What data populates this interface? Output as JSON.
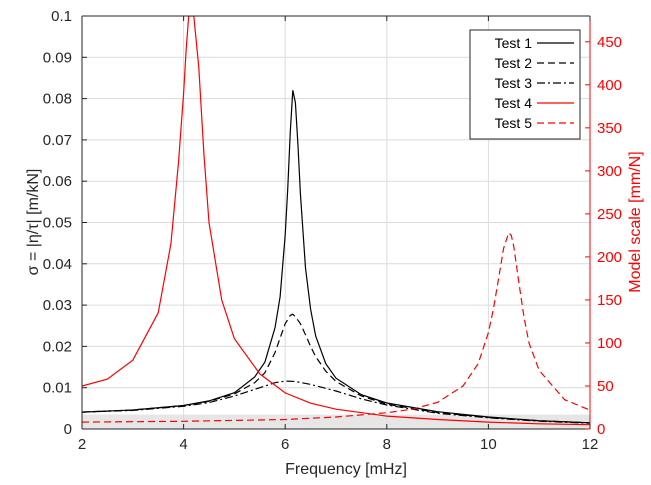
{
  "chart_data": {
    "type": "line",
    "xlabel": "Frequency [mHz]",
    "ylabel_left": "σ = |η/τ| [m/kN]",
    "ylabel_right": "Model scale [mm/N]",
    "xlim": [
      2,
      12
    ],
    "ylim_left": [
      0,
      0.1
    ],
    "ylim_right": [
      0,
      480
    ],
    "x_ticks": [
      "2",
      "4",
      "6",
      "8",
      "10",
      "12"
    ],
    "y_ticks_left": [
      "0",
      "0.01",
      "0.02",
      "0.03",
      "0.04",
      "0.05",
      "0.06",
      "0.07",
      "0.08",
      "0.09",
      "0.1"
    ],
    "y_ticks_right": [
      "0",
      "50",
      "100",
      "150",
      "200",
      "250",
      "300",
      "350",
      "400",
      "450"
    ],
    "grid": true,
    "legend_position": "top-right",
    "shaded_band": {
      "y_from": 0,
      "y_to": 0.0035,
      "axis": "left"
    },
    "colors": {
      "black": "#000000",
      "red": "#ff0000",
      "grid": "#dcdcdc",
      "band": "#e6e6e6"
    },
    "series": [
      {
        "name": "Test 1",
        "axis": "left",
        "color": "#000000",
        "dash": "solid",
        "x": [
          2,
          3,
          4,
          4.5,
          5,
          5.4,
          5.6,
          5.8,
          5.9,
          6.0,
          6.05,
          6.1,
          6.15,
          6.2,
          6.25,
          6.3,
          6.4,
          6.5,
          6.6,
          6.8,
          7.0,
          7.5,
          8.0,
          9.0,
          10.0,
          11.0,
          12.0
        ],
        "y": [
          0.0041,
          0.0046,
          0.0057,
          0.0068,
          0.0088,
          0.0126,
          0.0162,
          0.0245,
          0.032,
          0.047,
          0.058,
          0.072,
          0.082,
          0.079,
          0.069,
          0.057,
          0.039,
          0.029,
          0.0225,
          0.0158,
          0.0123,
          0.0083,
          0.0063,
          0.0042,
          0.0029,
          0.002,
          0.0015
        ]
      },
      {
        "name": "Test 2",
        "axis": "left",
        "color": "#000000",
        "dash": "dashed",
        "x": [
          2,
          3,
          4,
          4.5,
          5,
          5.4,
          5.6,
          5.8,
          5.9,
          6.0,
          6.1,
          6.15,
          6.2,
          6.3,
          6.4,
          6.5,
          6.6,
          6.8,
          7.0,
          7.5,
          8.0,
          9.0,
          10.0,
          11.0,
          12.0
        ],
        "y": [
          0.0041,
          0.0046,
          0.0057,
          0.0067,
          0.0085,
          0.0112,
          0.0136,
          0.0185,
          0.022,
          0.0255,
          0.0275,
          0.0278,
          0.0272,
          0.0255,
          0.0228,
          0.02,
          0.0175,
          0.014,
          0.0115,
          0.008,
          0.006,
          0.004,
          0.0028,
          0.002,
          0.0015
        ]
      },
      {
        "name": "Test 3",
        "axis": "left",
        "color": "#000000",
        "dash": "dashdot",
        "x": [
          2,
          3,
          4,
          4.5,
          5,
          5.5,
          5.8,
          6.0,
          6.2,
          6.5,
          7.0,
          7.5,
          8.0,
          9.0,
          10.0,
          11.0,
          12.0
        ],
        "y": [
          0.0041,
          0.0045,
          0.0055,
          0.0064,
          0.008,
          0.01,
          0.0112,
          0.0116,
          0.0115,
          0.0108,
          0.0092,
          0.0073,
          0.0058,
          0.0038,
          0.0027,
          0.0019,
          0.0014
        ]
      },
      {
        "name": "Test 4",
        "axis": "right",
        "color": "#ff0000",
        "dash": "solid",
        "x": [
          2,
          2.5,
          3,
          3.5,
          3.75,
          3.9,
          4.0,
          4.05,
          4.1,
          4.2,
          4.3,
          4.4,
          4.5,
          4.75,
          5.0,
          5.5,
          6.0,
          6.5,
          7.0,
          8.0,
          9.0,
          10.0,
          11.0,
          12.0
        ],
        "y": [
          50,
          58,
          80,
          135,
          215,
          310,
          390,
          440,
          480,
          480,
          420,
          320,
          240,
          150,
          105,
          64,
          42,
          30,
          23,
          15,
          11,
          8,
          6,
          5
        ]
      },
      {
        "name": "Test 5",
        "axis": "right",
        "color": "#ff0000",
        "dash": "dashed",
        "x": [
          2,
          4,
          6,
          7,
          8,
          8.5,
          9,
          9.5,
          9.8,
          10.0,
          10.1,
          10.2,
          10.3,
          10.4,
          10.45,
          10.5,
          10.6,
          10.7,
          10.8,
          11.0,
          11.5,
          12.0
        ],
        "y": [
          8,
          9,
          11,
          14,
          19,
          23,
          31,
          50,
          76,
          112,
          140,
          175,
          210,
          228,
          225,
          212,
          170,
          130,
          100,
          68,
          34,
          22
        ]
      }
    ]
  }
}
